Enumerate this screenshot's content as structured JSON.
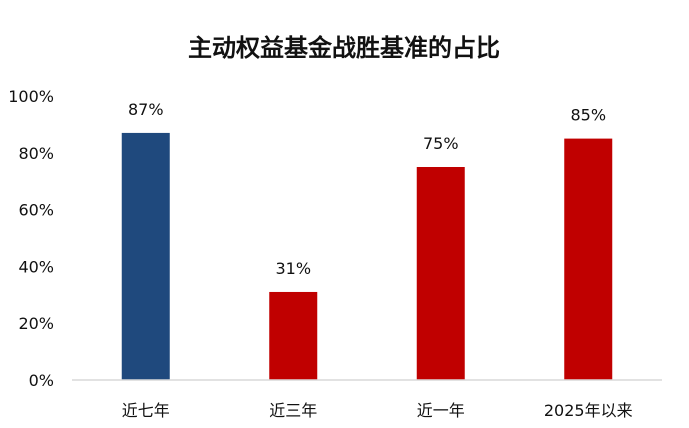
{
  "chart_data": {
    "type": "bar",
    "title": "主动权益基金战胜基准的占比",
    "categories": [
      "近七年",
      "近三年",
      "近一年",
      "2025年以来"
    ],
    "values": [
      87,
      31,
      75,
      85
    ],
    "data_labels": [
      "87%",
      "31%",
      "75%",
      "85%"
    ],
    "colors": [
      "#1F497D",
      "#C00000",
      "#C00000",
      "#C00000"
    ],
    "ylim": [
      0,
      100
    ],
    "yticks": [
      0,
      20,
      40,
      60,
      80,
      100
    ],
    "ytick_labels": [
      "0%",
      "20%",
      "40%",
      "60%",
      "80%",
      "100%"
    ],
    "xlabel": "",
    "ylabel": "",
    "grid": false,
    "legend": "none"
  }
}
